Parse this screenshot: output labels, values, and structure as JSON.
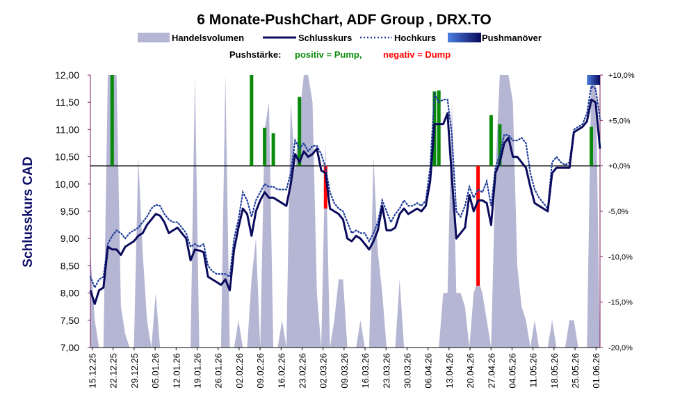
{
  "chart_data": {
    "type": "line",
    "title": "6 Monate-PushChart, ADF Group , DRX.TO",
    "legend": {
      "volume": "Handelsvolumen",
      "close": "Schlusskurs",
      "high": "Hochkurs",
      "push": "Pushmanöver"
    },
    "strength_note": {
      "label": "Pushstärke:",
      "positive": "positiv = Pump,",
      "negative": "negativ = Dump"
    },
    "ylabel": "Schlusskurs CAD",
    "ylim": [
      7.0,
      12.0
    ],
    "y2lim": [
      -20.0,
      10.0
    ],
    "y_ticks": [
      "7,00",
      "7,50",
      "8,00",
      "8,50",
      "9,00",
      "9,50",
      "10,00",
      "10,50",
      "11,00",
      "11,50",
      "12,00"
    ],
    "y2_ticks": [
      "-20,0%",
      "-15,0%",
      "-10,0%",
      "-5,0%",
      "+0,0%",
      "+5,0%",
      "+10,0%"
    ],
    "x_ticks": [
      "15.12.25",
      "22.12.25",
      "29.12.25",
      "05.01.26",
      "12.01.26",
      "19.01.26",
      "26.01.26",
      "02.02.26",
      "09.02.26",
      "16.02.26",
      "23.02.26",
      "02.03.26",
      "09.03.26",
      "16.03.26",
      "23.03.26",
      "30.03.26",
      "06.04.26",
      "13.04.26",
      "20.04.26",
      "27.04.26",
      "04.05.26",
      "11.05.26",
      "18.05.26",
      "25.05.26",
      "01.06.26"
    ],
    "baseline_pct": 0.0,
    "colors": {
      "close": "#0a0a5c",
      "high": "#1f3c99",
      "volume": "#b4b6d4",
      "pump": "#0a8a0a",
      "dump": "#ff0000",
      "push": "#1f3c99",
      "right_axis": "#7b1f5b"
    },
    "close": [
      [
        0,
        8.05
      ],
      [
        1,
        7.8
      ],
      [
        2,
        8.05
      ],
      [
        3,
        8.1
      ],
      [
        4,
        8.85
      ],
      [
        5,
        8.8
      ],
      [
        6,
        8.8
      ],
      [
        7,
        8.7
      ],
      [
        8,
        8.85
      ],
      [
        9,
        8.9
      ],
      [
        10,
        8.95
      ],
      [
        11,
        9.05
      ],
      [
        12,
        9.1
      ],
      [
        13,
        9.25
      ],
      [
        14,
        9.35
      ],
      [
        15,
        9.45
      ],
      [
        16,
        9.42
      ],
      [
        17,
        9.3
      ],
      [
        18,
        9.1
      ],
      [
        19,
        9.15
      ],
      [
        20,
        9.2
      ],
      [
        21,
        9.1
      ],
      [
        22,
        9.0
      ],
      [
        23,
        8.6
      ],
      [
        24,
        8.8
      ],
      [
        25,
        8.78
      ],
      [
        26,
        8.75
      ],
      [
        27,
        8.3
      ],
      [
        28,
        8.25
      ],
      [
        29,
        8.2
      ],
      [
        30,
        8.15
      ],
      [
        31,
        8.25
      ],
      [
        32,
        8.05
      ],
      [
        33,
        8.8
      ],
      [
        34,
        9.2
      ],
      [
        35,
        9.55
      ],
      [
        36,
        9.45
      ],
      [
        37,
        9.05
      ],
      [
        38,
        9.5
      ],
      [
        39,
        9.7
      ],
      [
        40,
        9.85
      ],
      [
        41,
        9.75
      ],
      [
        42,
        9.75
      ],
      [
        43,
        9.7
      ],
      [
        44,
        9.65
      ],
      [
        45,
        9.6
      ],
      [
        46,
        10.0
      ],
      [
        47,
        10.55
      ],
      [
        48,
        10.4
      ],
      [
        49,
        10.6
      ],
      [
        50,
        10.5
      ],
      [
        51,
        10.55
      ],
      [
        52,
        10.65
      ],
      [
        53,
        10.25
      ],
      [
        54,
        10.2
      ],
      [
        55,
        9.55
      ],
      [
        56,
        9.5
      ],
      [
        57,
        9.45
      ],
      [
        58,
        9.35
      ],
      [
        59,
        9.0
      ],
      [
        60,
        8.95
      ],
      [
        61,
        9.05
      ],
      [
        62,
        9.0
      ],
      [
        63,
        8.9
      ],
      [
        64,
        8.8
      ],
      [
        65,
        8.95
      ],
      [
        66,
        9.15
      ],
      [
        67,
        9.6
      ],
      [
        68,
        9.15
      ],
      [
        69,
        9.15
      ],
      [
        70,
        9.2
      ],
      [
        71,
        9.45
      ],
      [
        72,
        9.55
      ],
      [
        73,
        9.45
      ],
      [
        74,
        9.5
      ],
      [
        75,
        9.55
      ],
      [
        76,
        9.5
      ],
      [
        77,
        9.6
      ],
      [
        78,
        10.05
      ],
      [
        79,
        11.1
      ],
      [
        80,
        11.1
      ],
      [
        81,
        11.1
      ],
      [
        82,
        11.3
      ],
      [
        83,
        10.1
      ],
      [
        84,
        9.0
      ],
      [
        85,
        9.1
      ],
      [
        86,
        9.2
      ],
      [
        87,
        9.8
      ],
      [
        88,
        9.5
      ],
      [
        89,
        9.7
      ],
      [
        90,
        9.7
      ],
      [
        91,
        9.65
      ],
      [
        92,
        9.25
      ],
      [
        93,
        10.2
      ],
      [
        94,
        10.4
      ],
      [
        95,
        10.75
      ],
      [
        96,
        10.85
      ],
      [
        97,
        10.5
      ],
      [
        98,
        10.5
      ],
      [
        99,
        10.4
      ],
      [
        100,
        10.3
      ],
      [
        101,
        9.95
      ],
      [
        102,
        9.65
      ],
      [
        103,
        9.6
      ],
      [
        104,
        9.55
      ],
      [
        105,
        9.5
      ],
      [
        106,
        10.2
      ],
      [
        107,
        10.3
      ],
      [
        108,
        10.3
      ],
      [
        109,
        10.3
      ],
      [
        110,
        10.3
      ],
      [
        111,
        10.95
      ],
      [
        112,
        11.0
      ],
      [
        113,
        11.05
      ],
      [
        114,
        11.15
      ],
      [
        115,
        11.55
      ],
      [
        116,
        11.5
      ],
      [
        117,
        10.65
      ]
    ],
    "high": [
      [
        0,
        8.3
      ],
      [
        1,
        8.1
      ],
      [
        2,
        8.25
      ],
      [
        3,
        8.3
      ],
      [
        4,
        8.9
      ],
      [
        5,
        9.05
      ],
      [
        6,
        9.15
      ],
      [
        7,
        9.1
      ],
      [
        8,
        9.0
      ],
      [
        9,
        9.1
      ],
      [
        10,
        9.15
      ],
      [
        11,
        9.2
      ],
      [
        12,
        9.3
      ],
      [
        13,
        9.4
      ],
      [
        14,
        9.55
      ],
      [
        15,
        9.62
      ],
      [
        16,
        9.6
      ],
      [
        17,
        9.45
      ],
      [
        18,
        9.35
      ],
      [
        19,
        9.3
      ],
      [
        20,
        9.3
      ],
      [
        21,
        9.2
      ],
      [
        22,
        9.1
      ],
      [
        23,
        8.85
      ],
      [
        24,
        8.9
      ],
      [
        25,
        8.85
      ],
      [
        26,
        8.9
      ],
      [
        27,
        8.5
      ],
      [
        28,
        8.4
      ],
      [
        29,
        8.35
      ],
      [
        30,
        8.35
      ],
      [
        31,
        8.35
      ],
      [
        32,
        8.3
      ],
      [
        33,
        9.0
      ],
      [
        34,
        9.35
      ],
      [
        35,
        9.85
      ],
      [
        36,
        9.7
      ],
      [
        37,
        9.4
      ],
      [
        38,
        9.7
      ],
      [
        39,
        9.85
      ],
      [
        40,
        10.0
      ],
      [
        41,
        9.95
      ],
      [
        42,
        9.95
      ],
      [
        43,
        9.9
      ],
      [
        44,
        9.9
      ],
      [
        45,
        9.9
      ],
      [
        46,
        10.2
      ],
      [
        47,
        10.8
      ],
      [
        48,
        10.65
      ],
      [
        49,
        10.75
      ],
      [
        50,
        10.6
      ],
      [
        51,
        10.7
      ],
      [
        52,
        10.7
      ],
      [
        53,
        10.55
      ],
      [
        54,
        10.3
      ],
      [
        55,
        9.85
      ],
      [
        56,
        9.65
      ],
      [
        57,
        9.55
      ],
      [
        58,
        9.5
      ],
      [
        59,
        9.3
      ],
      [
        60,
        9.1
      ],
      [
        61,
        9.15
      ],
      [
        62,
        9.1
      ],
      [
        63,
        9.1
      ],
      [
        64,
        8.95
      ],
      [
        65,
        9.1
      ],
      [
        66,
        9.3
      ],
      [
        67,
        9.7
      ],
      [
        68,
        9.5
      ],
      [
        69,
        9.3
      ],
      [
        70,
        9.45
      ],
      [
        71,
        9.55
      ],
      [
        72,
        9.7
      ],
      [
        73,
        9.6
      ],
      [
        74,
        9.6
      ],
      [
        75,
        9.65
      ],
      [
        76,
        9.6
      ],
      [
        77,
        9.7
      ],
      [
        78,
        10.3
      ],
      [
        79,
        11.65
      ],
      [
        80,
        11.5
      ],
      [
        81,
        11.55
      ],
      [
        82,
        11.55
      ],
      [
        83,
        10.9
      ],
      [
        84,
        9.5
      ],
      [
        85,
        9.4
      ],
      [
        86,
        9.6
      ],
      [
        87,
        9.95
      ],
      [
        88,
        9.75
      ],
      [
        89,
        9.9
      ],
      [
        90,
        9.85
      ],
      [
        91,
        10.05
      ],
      [
        92,
        9.6
      ],
      [
        93,
        10.3
      ],
      [
        94,
        10.55
      ],
      [
        95,
        10.9
      ],
      [
        96,
        10.9
      ],
      [
        97,
        10.8
      ],
      [
        98,
        10.8
      ],
      [
        99,
        10.85
      ],
      [
        100,
        10.75
      ],
      [
        101,
        10.2
      ],
      [
        102,
        9.9
      ],
      [
        103,
        9.75
      ],
      [
        104,
        9.65
      ],
      [
        105,
        9.55
      ],
      [
        106,
        10.4
      ],
      [
        107,
        10.5
      ],
      [
        108,
        10.4
      ],
      [
        109,
        10.35
      ],
      [
        110,
        10.4
      ],
      [
        111,
        11.0
      ],
      [
        112,
        11.05
      ],
      [
        113,
        11.1
      ],
      [
        114,
        11.3
      ],
      [
        115,
        11.8
      ],
      [
        116,
        11.75
      ],
      [
        117,
        11.2
      ]
    ],
    "volume": [
      [
        0,
        0.35
      ],
      [
        1,
        0.1
      ],
      [
        2,
        0
      ],
      [
        3,
        0
      ],
      [
        4,
        1.0
      ],
      [
        5,
        1.0
      ],
      [
        6,
        1.0
      ],
      [
        7,
        0.15
      ],
      [
        8,
        0.05
      ],
      [
        9,
        0
      ],
      [
        10,
        0
      ],
      [
        11,
        0.7
      ],
      [
        12,
        0.35
      ],
      [
        13,
        0.1
      ],
      [
        14,
        0
      ],
      [
        15,
        0.2
      ],
      [
        16,
        0
      ],
      [
        17,
        0
      ],
      [
        18,
        0
      ],
      [
        19,
        0
      ],
      [
        20,
        0
      ],
      [
        21,
        0
      ],
      [
        22,
        0
      ],
      [
        23,
        0
      ],
      [
        24,
        1.0
      ],
      [
        25,
        0
      ],
      [
        26,
        0
      ],
      [
        27,
        0
      ],
      [
        28,
        0
      ],
      [
        29,
        0
      ],
      [
        30,
        0
      ],
      [
        31,
        1.0
      ],
      [
        32,
        0
      ],
      [
        33,
        0
      ],
      [
        34,
        0.1
      ],
      [
        35,
        0
      ],
      [
        36,
        0
      ],
      [
        37,
        0.25
      ],
      [
        38,
        0.4
      ],
      [
        39,
        0
      ],
      [
        40,
        0.8
      ],
      [
        41,
        0.9
      ],
      [
        42,
        0
      ],
      [
        43,
        0
      ],
      [
        44,
        0.1
      ],
      [
        45,
        0
      ],
      [
        46,
        0.9
      ],
      [
        47,
        0.65
      ],
      [
        48,
        0.85
      ],
      [
        49,
        1.0
      ],
      [
        50,
        1.0
      ],
      [
        51,
        0.9
      ],
      [
        52,
        0.2
      ],
      [
        53,
        0
      ],
      [
        54,
        0.75
      ],
      [
        55,
        0
      ],
      [
        56,
        0.1
      ],
      [
        57,
        0.25
      ],
      [
        58,
        0.25
      ],
      [
        59,
        0
      ],
      [
        60,
        0
      ],
      [
        61,
        0
      ],
      [
        62,
        0.1
      ],
      [
        63,
        0
      ],
      [
        64,
        0
      ],
      [
        65,
        0.7
      ],
      [
        66,
        0.35
      ],
      [
        67,
        0.2
      ],
      [
        68,
        0
      ],
      [
        69,
        0
      ],
      [
        70,
        0
      ],
      [
        71,
        0.25
      ],
      [
        72,
        0
      ],
      [
        73,
        0
      ],
      [
        74,
        0
      ],
      [
        75,
        0
      ],
      [
        76,
        0
      ],
      [
        77,
        0
      ],
      [
        78,
        0
      ],
      [
        79,
        0
      ],
      [
        80,
        0
      ],
      [
        81,
        0.2
      ],
      [
        82,
        0.2
      ],
      [
        83,
        0.9
      ],
      [
        84,
        0.2
      ],
      [
        85,
        0.2
      ],
      [
        86,
        0.15
      ],
      [
        87,
        0
      ],
      [
        88,
        0.2
      ],
      [
        89,
        0.25
      ],
      [
        90,
        0.2
      ],
      [
        91,
        0.1
      ],
      [
        92,
        0
      ],
      [
        93,
        0.65
      ],
      [
        94,
        1.0
      ],
      [
        95,
        1.0
      ],
      [
        96,
        1.0
      ],
      [
        97,
        0.9
      ],
      [
        98,
        0.3
      ],
      [
        99,
        0.15
      ],
      [
        100,
        0.1
      ],
      [
        101,
        0
      ],
      [
        102,
        0.1
      ],
      [
        103,
        0
      ],
      [
        104,
        0
      ],
      [
        105,
        0
      ],
      [
        106,
        0.1
      ],
      [
        107,
        0
      ],
      [
        108,
        0
      ],
      [
        109,
        0
      ],
      [
        110,
        0.1
      ],
      [
        111,
        0.1
      ],
      [
        112,
        0
      ],
      [
        113,
        0
      ],
      [
        114,
        0
      ],
      [
        115,
        1.0
      ],
      [
        116,
        1.0
      ],
      [
        117,
        0
      ]
    ],
    "push_bars": [
      [
        5,
        10.0
      ],
      [
        37,
        10.0
      ],
      [
        40,
        4.2
      ],
      [
        42,
        3.6
      ],
      [
        48,
        7.6
      ],
      [
        54,
        -4.7
      ],
      [
        79,
        8.2
      ],
      [
        80,
        8.3
      ],
      [
        89,
        -13.2
      ],
      [
        92,
        5.6
      ],
      [
        94,
        4.6
      ],
      [
        115,
        4.3
      ]
    ],
    "push_marker": [
      [
        114,
        117,
        10.0
      ]
    ]
  }
}
